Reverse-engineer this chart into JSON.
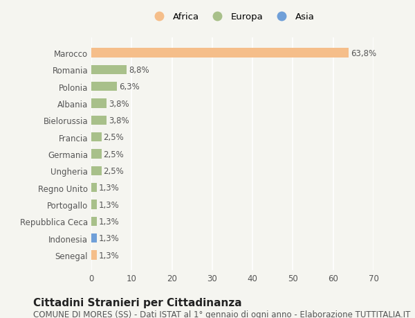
{
  "countries": [
    "Marocco",
    "Romania",
    "Polonia",
    "Albania",
    "Bielorussia",
    "Francia",
    "Germania",
    "Ungheria",
    "Regno Unito",
    "Portogallo",
    "Repubblica Ceca",
    "Indonesia",
    "Senegal"
  ],
  "values": [
    63.8,
    8.8,
    6.3,
    3.8,
    3.8,
    2.5,
    2.5,
    2.5,
    1.3,
    1.3,
    1.3,
    1.3,
    1.3
  ],
  "labels": [
    "63,8%",
    "8,8%",
    "6,3%",
    "3,8%",
    "3,8%",
    "2,5%",
    "2,5%",
    "2,5%",
    "1,3%",
    "1,3%",
    "1,3%",
    "1,3%",
    "1,3%"
  ],
  "colors": [
    "#F5BE8A",
    "#A8C08A",
    "#A8C08A",
    "#A8C08A",
    "#A8C08A",
    "#A8C08A",
    "#A8C08A",
    "#A8C08A",
    "#A8C08A",
    "#A8C08A",
    "#A8C08A",
    "#6F9FD8",
    "#F5BE8A"
  ],
  "continent": [
    "Africa",
    "Europa",
    "Europa",
    "Europa",
    "Europa",
    "Europa",
    "Europa",
    "Europa",
    "Europa",
    "Europa",
    "Europa",
    "Asia",
    "Africa"
  ],
  "legend_labels": [
    "Africa",
    "Europa",
    "Asia"
  ],
  "legend_colors": [
    "#F5BE8A",
    "#A8C08A",
    "#6F9FD8"
  ],
  "xlim": [
    0,
    70
  ],
  "xticks": [
    0,
    10,
    20,
    30,
    40,
    50,
    60,
    70
  ],
  "title": "Cittadini Stranieri per Cittadinanza",
  "subtitle": "COMUNE DI MORES (SS) - Dati ISTAT al 1° gennaio di ogni anno - Elaborazione TUTTITALIA.IT",
  "bg_color": "#f5f5f0",
  "bar_height": 0.55,
  "label_fontsize": 8.5,
  "tick_fontsize": 8.5,
  "title_fontsize": 11,
  "subtitle_fontsize": 8.5
}
